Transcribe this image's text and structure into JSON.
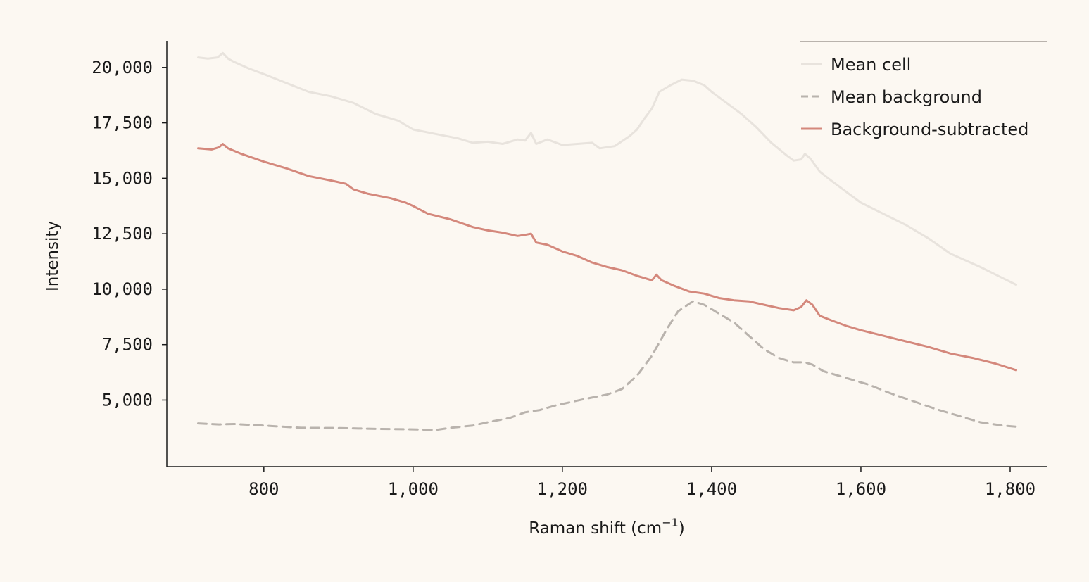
{
  "chart_data": {
    "type": "line",
    "title": "",
    "xlabel": "Raman shift (cm",
    "xlabel_sup": "−1",
    "xlabel_close": ")",
    "ylabel": "Intensity",
    "xlim": [
      670,
      1850
    ],
    "ylim": [
      2000,
      21200
    ],
    "xticks": [
      800,
      1000,
      1200,
      1400,
      1600,
      1800
    ],
    "xtick_labels": [
      "800",
      "1,000",
      "1,200",
      "1,400",
      "1,600",
      "1,800"
    ],
    "yticks": [
      5000,
      7500,
      10000,
      12500,
      15000,
      17500,
      20000
    ],
    "ytick_labels": [
      "5,000",
      "7,500",
      "10,000",
      "12,500",
      "15,000",
      "17,500",
      "20,000"
    ],
    "grid": false,
    "legend_position": "top-right",
    "series": [
      {
        "name": "Mean cell",
        "color": "#e8e3dd",
        "style": "solid",
        "points": [
          [
            712,
            20450
          ],
          [
            725,
            20400
          ],
          [
            738,
            20450
          ],
          [
            745,
            20650
          ],
          [
            752,
            20400
          ],
          [
            760,
            20250
          ],
          [
            780,
            19950
          ],
          [
            800,
            19700
          ],
          [
            830,
            19300
          ],
          [
            860,
            18900
          ],
          [
            890,
            18700
          ],
          [
            920,
            18400
          ],
          [
            950,
            17900
          ],
          [
            980,
            17600
          ],
          [
            1000,
            17200
          ],
          [
            1030,
            17000
          ],
          [
            1060,
            16800
          ],
          [
            1080,
            16600
          ],
          [
            1100,
            16650
          ],
          [
            1120,
            16550
          ],
          [
            1140,
            16750
          ],
          [
            1150,
            16700
          ],
          [
            1158,
            17050
          ],
          [
            1165,
            16550
          ],
          [
            1180,
            16750
          ],
          [
            1200,
            16500
          ],
          [
            1220,
            16550
          ],
          [
            1240,
            16600
          ],
          [
            1250,
            16350
          ],
          [
            1270,
            16450
          ],
          [
            1290,
            16900
          ],
          [
            1300,
            17200
          ],
          [
            1310,
            17700
          ],
          [
            1320,
            18150
          ],
          [
            1330,
            18900
          ],
          [
            1345,
            19200
          ],
          [
            1360,
            19450
          ],
          [
            1375,
            19400
          ],
          [
            1390,
            19200
          ],
          [
            1400,
            18900
          ],
          [
            1420,
            18400
          ],
          [
            1440,
            17900
          ],
          [
            1460,
            17300
          ],
          [
            1480,
            16600
          ],
          [
            1500,
            16050
          ],
          [
            1510,
            15800
          ],
          [
            1520,
            15850
          ],
          [
            1525,
            16100
          ],
          [
            1532,
            15900
          ],
          [
            1545,
            15300
          ],
          [
            1560,
            14900
          ],
          [
            1580,
            14400
          ],
          [
            1600,
            13900
          ],
          [
            1630,
            13400
          ],
          [
            1660,
            12900
          ],
          [
            1690,
            12300
          ],
          [
            1720,
            11600
          ],
          [
            1760,
            11000
          ],
          [
            1790,
            10500
          ],
          [
            1808,
            10200
          ]
        ]
      },
      {
        "name": "Mean background",
        "color": "#b9b3ad",
        "style": "dashed",
        "points": [
          [
            712,
            3950
          ],
          [
            740,
            3900
          ],
          [
            760,
            3920
          ],
          [
            800,
            3850
          ],
          [
            850,
            3750
          ],
          [
            900,
            3740
          ],
          [
            950,
            3700
          ],
          [
            1000,
            3680
          ],
          [
            1030,
            3650
          ],
          [
            1050,
            3750
          ],
          [
            1080,
            3850
          ],
          [
            1100,
            4000
          ],
          [
            1130,
            4200
          ],
          [
            1150,
            4450
          ],
          [
            1170,
            4550
          ],
          [
            1190,
            4750
          ],
          [
            1210,
            4900
          ],
          [
            1230,
            5050
          ],
          [
            1260,
            5250
          ],
          [
            1280,
            5500
          ],
          [
            1300,
            6100
          ],
          [
            1320,
            7000
          ],
          [
            1340,
            8200
          ],
          [
            1355,
            9000
          ],
          [
            1375,
            9450
          ],
          [
            1390,
            9300
          ],
          [
            1410,
            8900
          ],
          [
            1430,
            8500
          ],
          [
            1450,
            7900
          ],
          [
            1470,
            7300
          ],
          [
            1490,
            6900
          ],
          [
            1510,
            6700
          ],
          [
            1525,
            6700
          ],
          [
            1535,
            6600
          ],
          [
            1550,
            6300
          ],
          [
            1580,
            6000
          ],
          [
            1610,
            5700
          ],
          [
            1640,
            5300
          ],
          [
            1670,
            4950
          ],
          [
            1700,
            4600
          ],
          [
            1730,
            4300
          ],
          [
            1760,
            4000
          ],
          [
            1790,
            3850
          ],
          [
            1808,
            3800
          ]
        ]
      },
      {
        "name": "Background-subtracted",
        "color": "#d4887c",
        "style": "solid",
        "points": [
          [
            712,
            16350
          ],
          [
            730,
            16300
          ],
          [
            740,
            16400
          ],
          [
            745,
            16550
          ],
          [
            752,
            16350
          ],
          [
            770,
            16100
          ],
          [
            800,
            15750
          ],
          [
            830,
            15450
          ],
          [
            860,
            15100
          ],
          [
            890,
            14900
          ],
          [
            910,
            14750
          ],
          [
            920,
            14500
          ],
          [
            940,
            14300
          ],
          [
            970,
            14100
          ],
          [
            990,
            13900
          ],
          [
            1000,
            13750
          ],
          [
            1020,
            13400
          ],
          [
            1050,
            13150
          ],
          [
            1080,
            12800
          ],
          [
            1100,
            12650
          ],
          [
            1120,
            12550
          ],
          [
            1140,
            12400
          ],
          [
            1150,
            12450
          ],
          [
            1158,
            12500
          ],
          [
            1165,
            12100
          ],
          [
            1180,
            12000
          ],
          [
            1200,
            11700
          ],
          [
            1220,
            11500
          ],
          [
            1240,
            11200
          ],
          [
            1260,
            11000
          ],
          [
            1280,
            10850
          ],
          [
            1300,
            10600
          ],
          [
            1320,
            10400
          ],
          [
            1326,
            10650
          ],
          [
            1333,
            10400
          ],
          [
            1350,
            10150
          ],
          [
            1370,
            9900
          ],
          [
            1390,
            9800
          ],
          [
            1410,
            9600
          ],
          [
            1430,
            9500
          ],
          [
            1450,
            9450
          ],
          [
            1470,
            9300
          ],
          [
            1490,
            9150
          ],
          [
            1510,
            9050
          ],
          [
            1520,
            9200
          ],
          [
            1527,
            9500
          ],
          [
            1535,
            9300
          ],
          [
            1545,
            8800
          ],
          [
            1560,
            8600
          ],
          [
            1580,
            8350
          ],
          [
            1600,
            8150
          ],
          [
            1630,
            7900
          ],
          [
            1660,
            7650
          ],
          [
            1690,
            7400
          ],
          [
            1720,
            7100
          ],
          [
            1750,
            6900
          ],
          [
            1780,
            6650
          ],
          [
            1808,
            6350
          ]
        ]
      }
    ]
  }
}
